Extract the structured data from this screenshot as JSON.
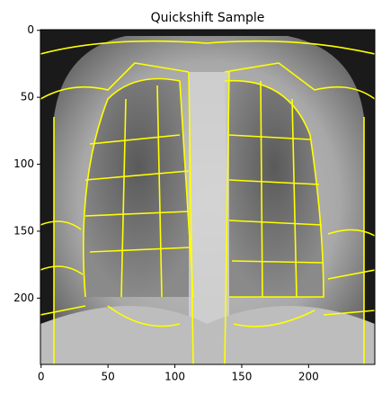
{
  "chart_data": {
    "type": "image",
    "title": "Quickshift Sample",
    "xlim": [
      -0.5,
      249.5
    ],
    "xticks": [
      0,
      50,
      100,
      150,
      200
    ],
    "ylim": [
      249.5,
      -0.5
    ],
    "yticks": [
      0,
      50,
      100,
      150,
      200
    ]
  }
}
